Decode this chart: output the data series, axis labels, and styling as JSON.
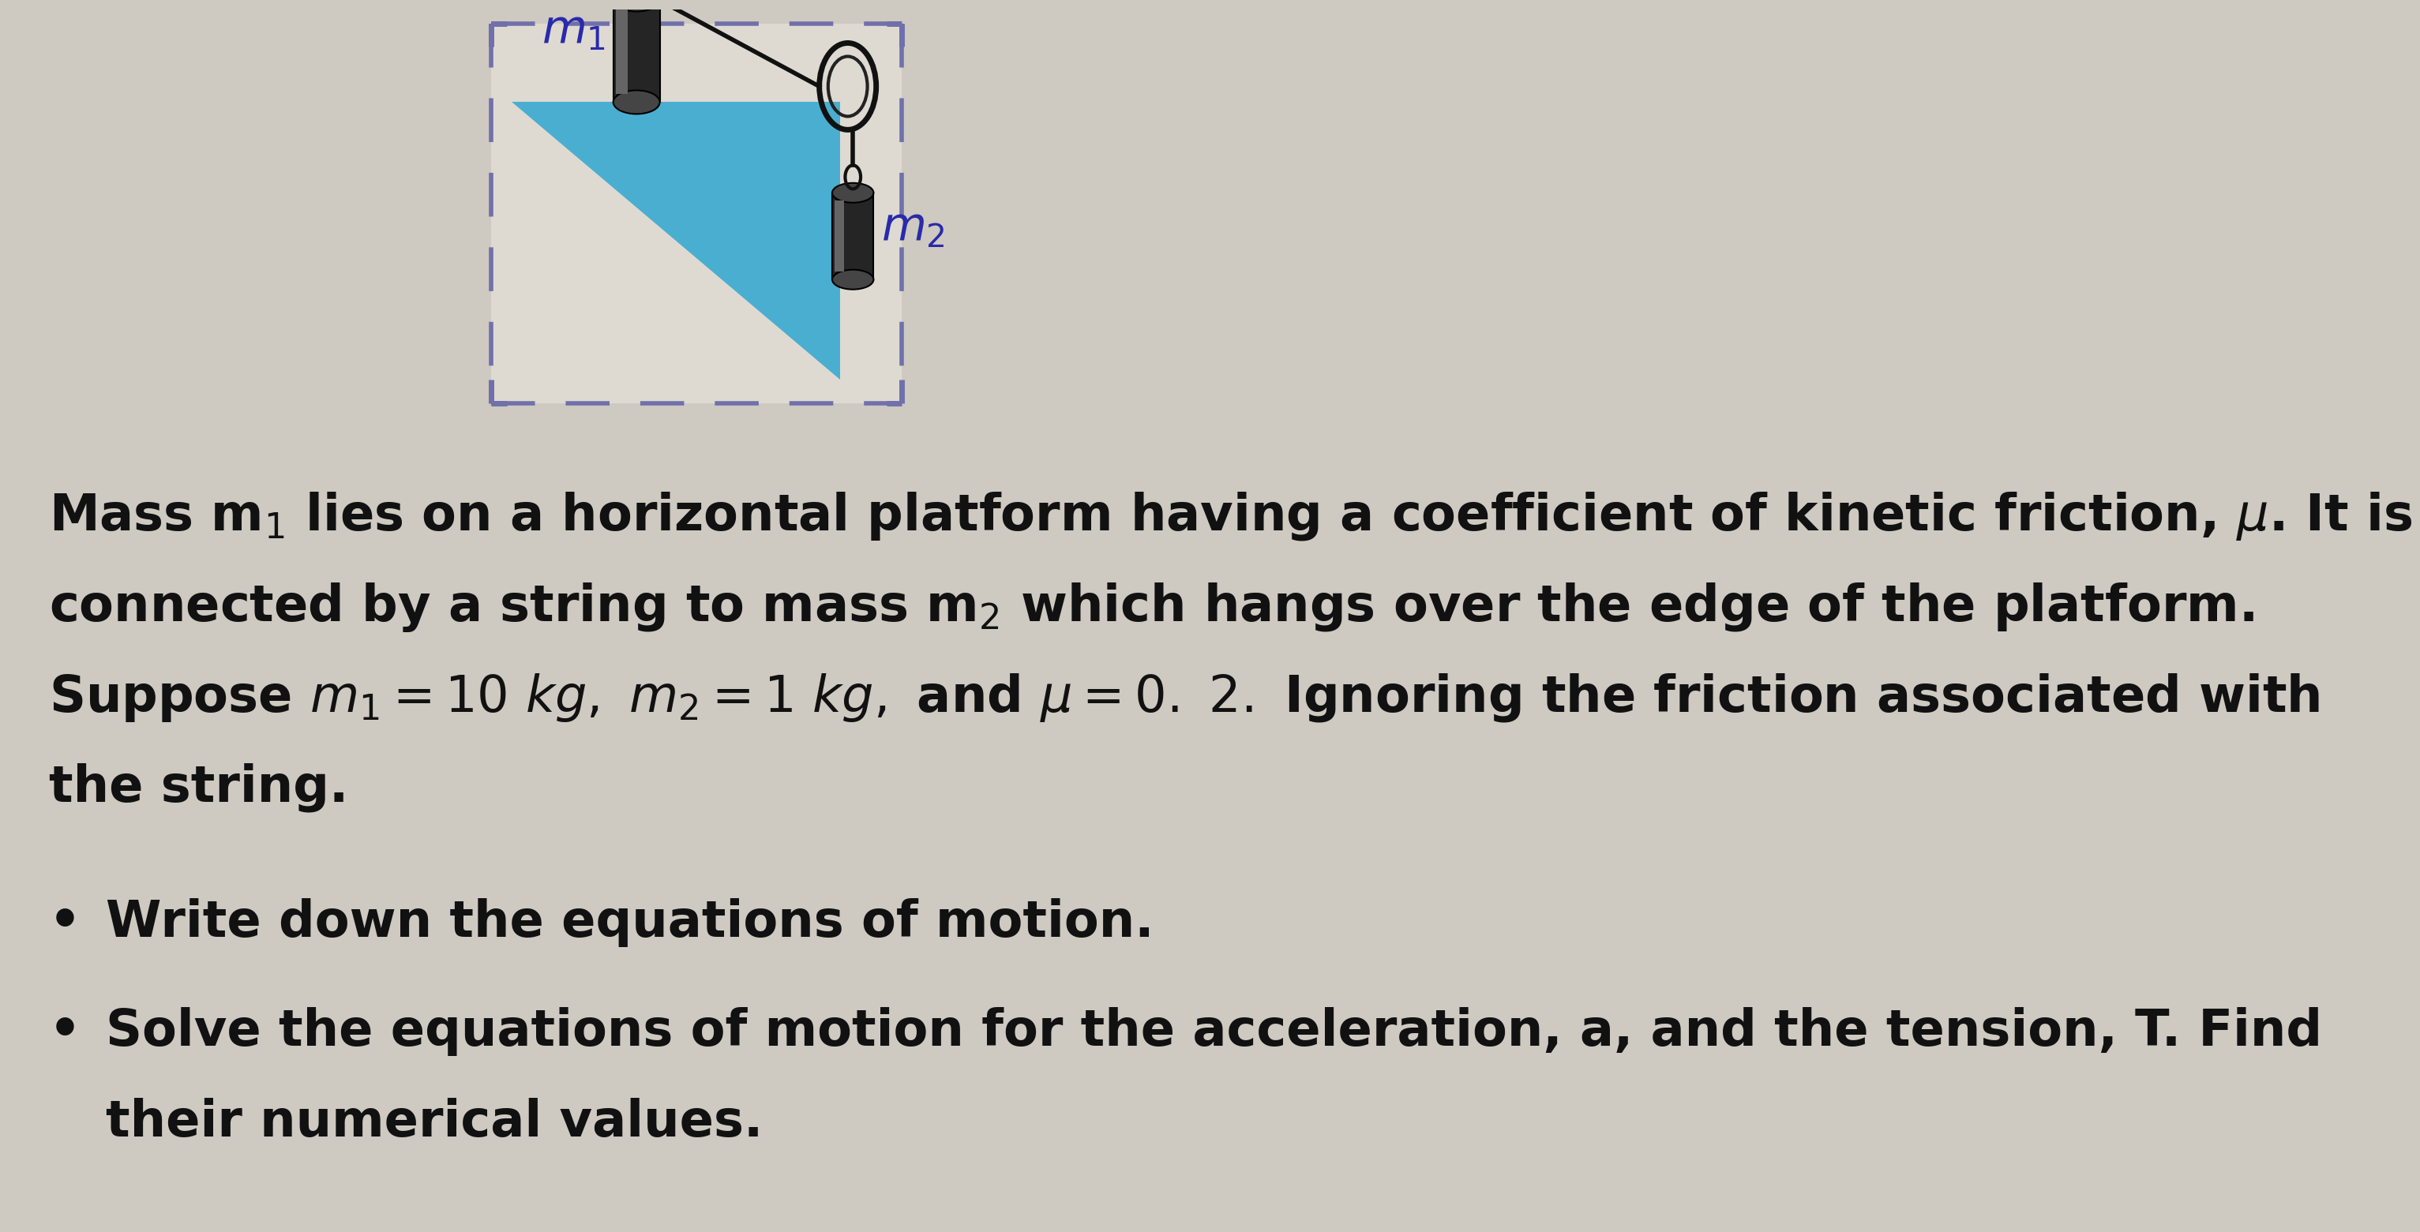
{
  "bg_color": "#cec9c1",
  "fig_width": 27.27,
  "fig_height": 15.41,
  "box_color": "#dedad2",
  "box_border_color": "#7070aa",
  "triangle_color": "#4aaed0",
  "text_color": "#111111",
  "mass_dark": "#252525",
  "mass_mid": "#454545",
  "mass_light": "#656565",
  "string_color": "#111111",
  "label_color": "#2a2aaa",
  "line1": "Mass m₁ lies on a horizontal platform having a coefficient of kinetic friction, μ. It is",
  "line2": "connected by a string to mass m₂ which hangs over the edge of the platform.",
  "line3a": "Suppose ",
  "line3b": "m₁ = 10 kg, m₂ = 1 kg, and μ = 0. 2.",
  "line3c": " Ignoring the friction associated with",
  "line4": "the string.",
  "bullet1": "Write down the equations of motion.",
  "bullet2a": "Solve the equations of motion for the acceleration, a, and the tension, T. Find",
  "bullet2b": "their numerical values."
}
